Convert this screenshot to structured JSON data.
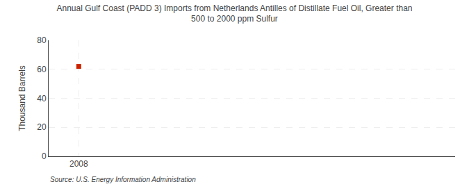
{
  "chart_data": {
    "type": "scatter",
    "title": "Annual Gulf Coast (PADD 3) Imports from Netherlands Antilles of Distillate Fuel Oil, Greater than\n500 to 2000 ppm Sulfur",
    "ylabel": "Thousand Barrels",
    "annotations": [
      "Source: U.S. Energy Information Administration"
    ],
    "x": [
      2008
    ],
    "values": [
      62
    ],
    "color": "#cc2200",
    "marker": "square",
    "xlim": [
      2007.4,
      2015.5
    ],
    "ylim": [
      0,
      80
    ],
    "xticks": [
      2008
    ],
    "yticks": [
      0,
      20,
      40,
      60,
      80
    ],
    "grid": true
  }
}
